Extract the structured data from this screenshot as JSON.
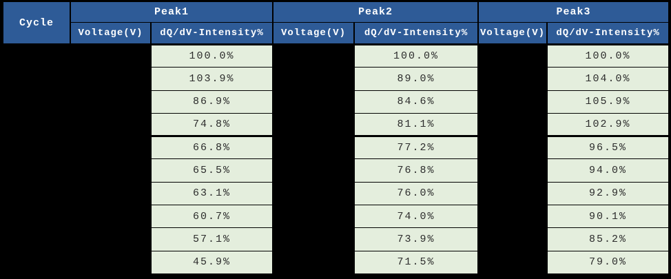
{
  "colors": {
    "header_bg": "#2e5b97",
    "header_text": "#ffffff",
    "cell_bg": "#e4eedd",
    "cell_text": "#2b2b2b",
    "border": "#000000",
    "redacted": "#000000"
  },
  "table": {
    "header": {
      "cycle": "Cycle",
      "peaks": [
        "Peak1",
        "Peak2",
        "Peak3"
      ],
      "voltage_label": "Voltage(V)",
      "intensity_label": "dQ/dV-Intensity%"
    },
    "redacted_columns": [
      "Cycle",
      "Peak1 Voltage(V)",
      "Peak2 Voltage(V)",
      "Peak3 Voltage(V)"
    ],
    "group_separator_after_row": 4,
    "rows": [
      {
        "peak1_intensity": "100.0%",
        "peak2_intensity": "100.0%",
        "peak3_intensity": "100.0%"
      },
      {
        "peak1_intensity": "103.9%",
        "peak2_intensity": "89.0%",
        "peak3_intensity": "104.0%"
      },
      {
        "peak1_intensity": "86.9%",
        "peak2_intensity": "84.6%",
        "peak3_intensity": "105.9%"
      },
      {
        "peak1_intensity": "74.8%",
        "peak2_intensity": "81.1%",
        "peak3_intensity": "102.9%"
      },
      {
        "peak1_intensity": "66.8%",
        "peak2_intensity": "77.2%",
        "peak3_intensity": "96.5%"
      },
      {
        "peak1_intensity": "65.5%",
        "peak2_intensity": "76.8%",
        "peak3_intensity": "94.0%"
      },
      {
        "peak1_intensity": "63.1%",
        "peak2_intensity": "76.0%",
        "peak3_intensity": "92.9%"
      },
      {
        "peak1_intensity": "60.7%",
        "peak2_intensity": "74.0%",
        "peak3_intensity": "90.1%"
      },
      {
        "peak1_intensity": "57.1%",
        "peak2_intensity": "73.9%",
        "peak3_intensity": "85.2%"
      },
      {
        "peak1_intensity": "45.9%",
        "peak2_intensity": "71.5%",
        "peak3_intensity": "79.0%"
      }
    ]
  },
  "chart_data": {
    "type": "table",
    "title": "",
    "columns": [
      "Cycle",
      "Peak1 Voltage(V)",
      "Peak1 dQ/dV-Intensity%",
      "Peak2 Voltage(V)",
      "Peak2 dQ/dV-Intensity%",
      "Peak3 Voltage(V)",
      "Peak3 dQ/dV-Intensity%"
    ],
    "series": [
      {
        "name": "Peak1 dQ/dV-Intensity%",
        "values": [
          100.0,
          103.9,
          86.9,
          74.8,
          66.8,
          65.5,
          63.1,
          60.7,
          57.1,
          45.9
        ]
      },
      {
        "name": "Peak2 dQ/dV-Intensity%",
        "values": [
          100.0,
          89.0,
          84.6,
          81.1,
          77.2,
          76.8,
          76.0,
          74.0,
          73.9,
          71.5
        ]
      },
      {
        "name": "Peak3 dQ/dV-Intensity%",
        "values": [
          100.0,
          104.0,
          105.9,
          102.9,
          96.5,
          94.0,
          92.9,
          90.1,
          85.2,
          79.0
        ]
      }
    ]
  }
}
